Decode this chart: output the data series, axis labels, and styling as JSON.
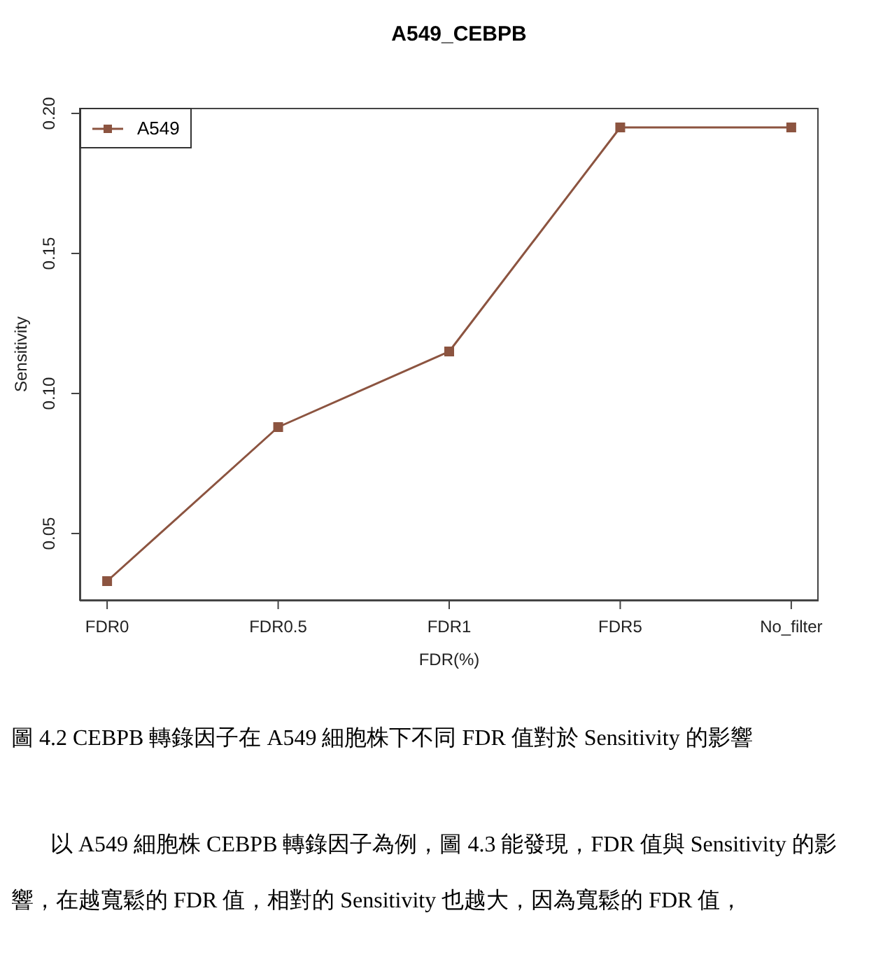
{
  "chart_data": {
    "type": "line",
    "title": "A549_CEBPB",
    "xlabel": "FDR(%)",
    "ylabel": "Sensitivity",
    "categories": [
      "FDR0",
      "FDR0.5",
      "FDR1",
      "FDR5",
      "No_filter"
    ],
    "series": [
      {
        "name": "A549",
        "color": "#8c5440",
        "values": [
          0.033,
          0.088,
          0.115,
          0.195,
          0.195
        ]
      }
    ],
    "ylim": [
      0.026,
      0.202
    ],
    "yticks": [
      0.05,
      {
        "value": 0.1,
        "label": "0.10"
      },
      0.15,
      {
        "value": 0.2,
        "label": "0.20"
      }
    ],
    "marker": "square",
    "line_style": "solid",
    "grid": false,
    "legend": "top left",
    "annotations": [
      "圖 4.2 CEBPB 轉錄因子在 A549 細胞株下不同 FDR 值對於 Sensitivity 的影響",
      "以 A549 細胞株 CEBPB 轉錄因子為例，圖 4.3 能發現，FDR 值與 Sensitivity 的影響，在越寬鬆的 FDR 值，相對的 Sensitivity 也越大，因為寬鬆的 FDR 值，"
    ]
  }
}
